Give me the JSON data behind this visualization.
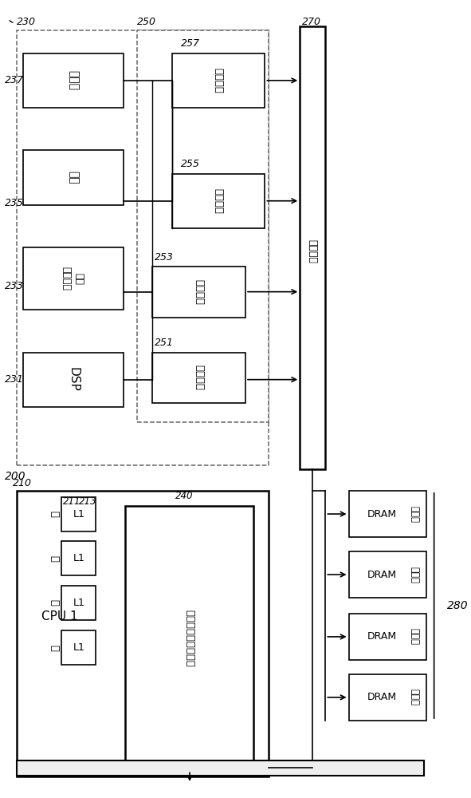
{
  "bg": "#ffffff",
  "lc": "#000000",
  "fig_w": 5.91,
  "fig_h": 10.0,
  "labels": {
    "230": "230",
    "250": "250",
    "270": "270",
    "237": "237",
    "235": "235",
    "233": "233",
    "231": "231",
    "257": "257",
    "255": "255",
    "253": "253",
    "251": "251",
    "200": "200",
    "210": "210",
    "211": "211",
    "213": "213",
    "240": "240",
    "280": "280",
    "display": "显示器",
    "bluetooth": "蓝牙",
    "sensor_hub": "传感器集线器",
    "dsp": "DSP",
    "sw": "开关单元",
    "sys_ic": "系统互连",
    "dram": "DRAM",
    "dram_ctrl": "控制器",
    "cpu1": "CPU 1",
    "core": "核",
    "l1": "L1",
    "cache": "可共享的高速缓存器"
  }
}
